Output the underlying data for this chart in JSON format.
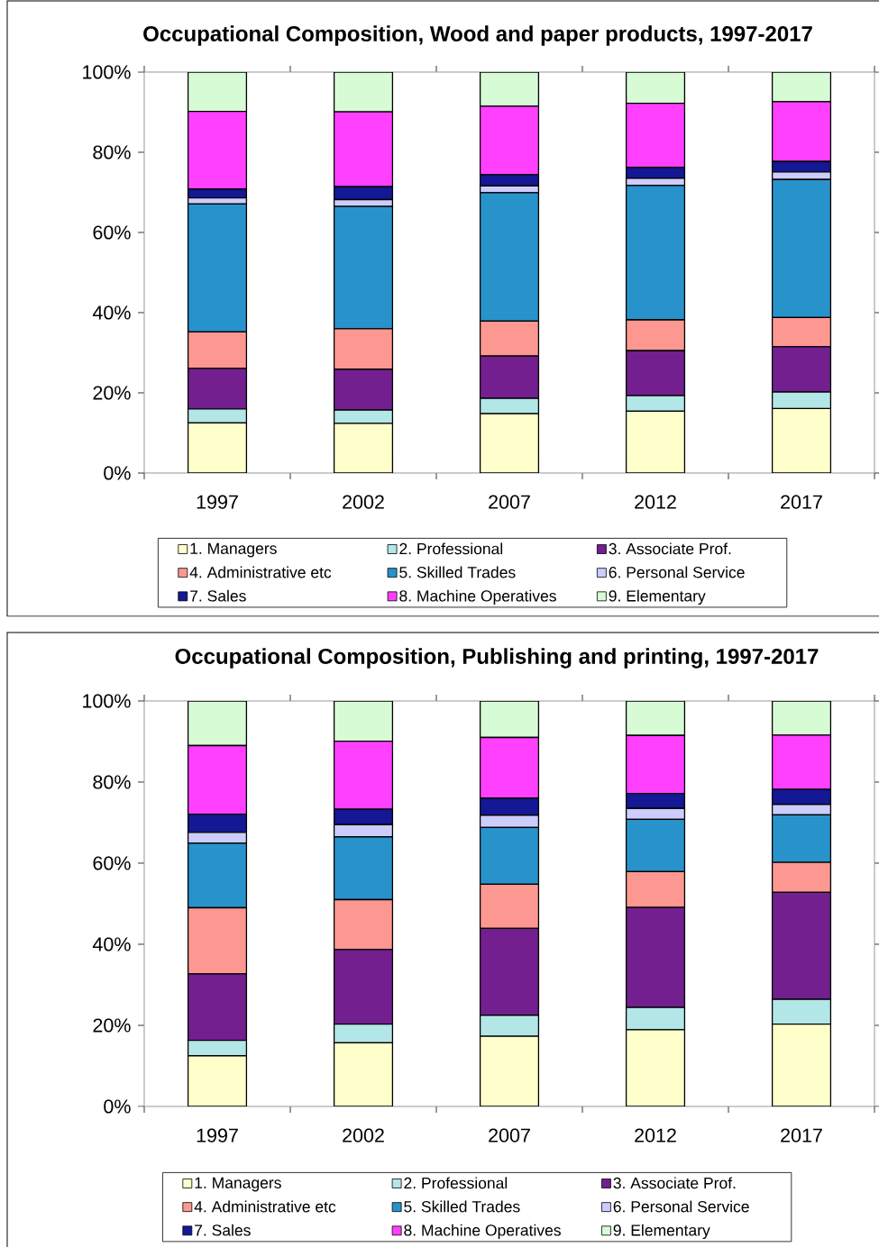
{
  "chart_data": [
    {
      "type": "bar",
      "stacked": true,
      "title": "Occupational Composition, Wood and paper products, 1997-2017",
      "categories": [
        "1997",
        "2002",
        "2007",
        "2012",
        "2017"
      ],
      "series": [
        {
          "name": "1. Managers",
          "color": "#ffffcc",
          "values": [
            12.5,
            12.4,
            14.8,
            15.4,
            16.1
          ]
        },
        {
          "name": "2. Professional",
          "color": "#b3e6e6",
          "values": [
            3.5,
            3.3,
            3.8,
            3.9,
            4.1
          ]
        },
        {
          "name": "3. Associate Prof.",
          "color": "#731f8f",
          "values": [
            10.1,
            10.2,
            10.6,
            11.2,
            11.3
          ]
        },
        {
          "name": "4. Administrative etc",
          "color": "#fc9891",
          "values": [
            9.1,
            10.1,
            8.7,
            7.7,
            7.3
          ]
        },
        {
          "name": "5. Skilled Trades",
          "color": "#2893cb",
          "values": [
            31.9,
            30.5,
            32.0,
            33.5,
            34.4
          ]
        },
        {
          "name": "6. Personal Service",
          "color": "#ccccff",
          "values": [
            1.5,
            1.7,
            1.7,
            1.8,
            1.9
          ]
        },
        {
          "name": "7. Sales",
          "color": "#141894",
          "values": [
            2.2,
            3.2,
            2.8,
            2.7,
            2.6
          ]
        },
        {
          "name": "8. Machine Operatives",
          "color": "#ff40ff",
          "values": [
            19.4,
            18.7,
            17.1,
            16.0,
            14.9
          ]
        },
        {
          "name": "9. Elementary",
          "color": "#d7fcd5",
          "values": [
            9.8,
            9.9,
            8.5,
            7.8,
            7.4
          ]
        }
      ],
      "ylim": [
        0,
        100
      ],
      "yticks": [
        {
          "value": 0,
          "label": "0%"
        },
        {
          "value": 20,
          "label": "20%"
        },
        {
          "value": 40,
          "label": "40%"
        },
        {
          "value": 60,
          "label": "60%"
        },
        {
          "value": 80,
          "label": "80%"
        },
        {
          "value": 100,
          "label": "100%"
        }
      ],
      "legend": "bottom"
    },
    {
      "type": "bar",
      "stacked": true,
      "title": "Occupational Composition, Publishing and printing, 1997-2017",
      "categories": [
        "1997",
        "2002",
        "2007",
        "2012",
        "2017"
      ],
      "series": [
        {
          "name": "1. Managers",
          "color": "#ffffcc",
          "values": [
            12.5,
            15.7,
            17.3,
            18.9,
            20.3
          ]
        },
        {
          "name": "2. Professional",
          "color": "#b3e6e6",
          "values": [
            3.8,
            4.6,
            5.2,
            5.5,
            6.1
          ]
        },
        {
          "name": "3. Associate Prof.",
          "color": "#731f8f",
          "values": [
            16.4,
            18.4,
            21.4,
            24.7,
            26.4
          ]
        },
        {
          "name": "4. Administrative etc",
          "color": "#fc9891",
          "values": [
            16.3,
            12.3,
            10.9,
            8.8,
            7.4
          ]
        },
        {
          "name": "5. Skilled Trades",
          "color": "#2893cb",
          "values": [
            15.9,
            15.5,
            14.0,
            12.9,
            11.7
          ]
        },
        {
          "name": "6. Personal Service",
          "color": "#ccccff",
          "values": [
            2.7,
            3.0,
            3.0,
            2.7,
            2.6
          ]
        },
        {
          "name": "7. Sales",
          "color": "#141894",
          "values": [
            4.5,
            3.8,
            4.2,
            3.7,
            3.7
          ]
        },
        {
          "name": "8. Machine Operatives",
          "color": "#ff40ff",
          "values": [
            16.9,
            16.8,
            15.0,
            14.3,
            13.4
          ]
        },
        {
          "name": "9. Elementary",
          "color": "#d7fcd5",
          "values": [
            11.0,
            9.9,
            9.0,
            8.5,
            8.4
          ]
        }
      ],
      "ylim": [
        0,
        100
      ],
      "yticks": [
        {
          "value": 0,
          "label": "0%"
        },
        {
          "value": 20,
          "label": "20%"
        },
        {
          "value": 40,
          "label": "40%"
        },
        {
          "value": 60,
          "label": "60%"
        },
        {
          "value": 80,
          "label": "80%"
        },
        {
          "value": 100,
          "label": "100%"
        }
      ],
      "legend": "bottom"
    }
  ]
}
